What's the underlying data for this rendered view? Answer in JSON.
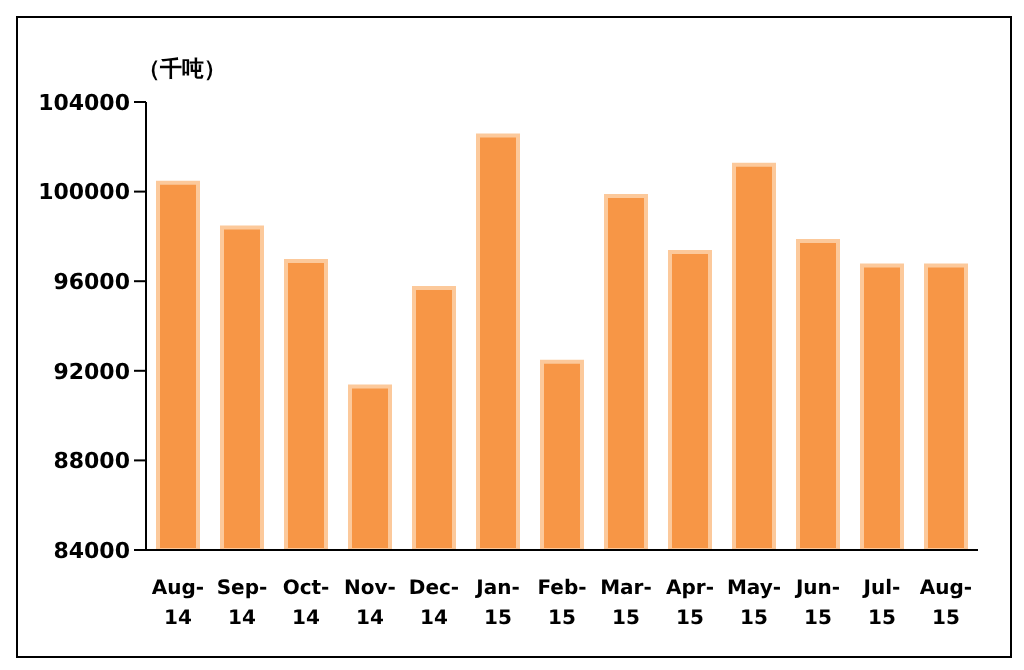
{
  "chart_data": {
    "type": "bar",
    "ylabel": "（千吨）",
    "categories": [
      "Aug-14",
      "Sep-14",
      "Oct-14",
      "Nov-14",
      "Dec-14",
      "Jan-15",
      "Feb-15",
      "Mar-15",
      "Apr-15",
      "May-15",
      "Jun-15",
      "Jul-15",
      "Aug-15"
    ],
    "values": [
      100400,
      98400,
      96900,
      91300,
      95700,
      102500,
      92400,
      99800,
      97300,
      101200,
      97800,
      96700,
      96700
    ],
    "color": "#f79646",
    "ylim": [
      84000,
      104000
    ],
    "yticks": [
      84000,
      88000,
      92000,
      96000,
      100000,
      104000
    ],
    "grid": false,
    "legend": false
  }
}
